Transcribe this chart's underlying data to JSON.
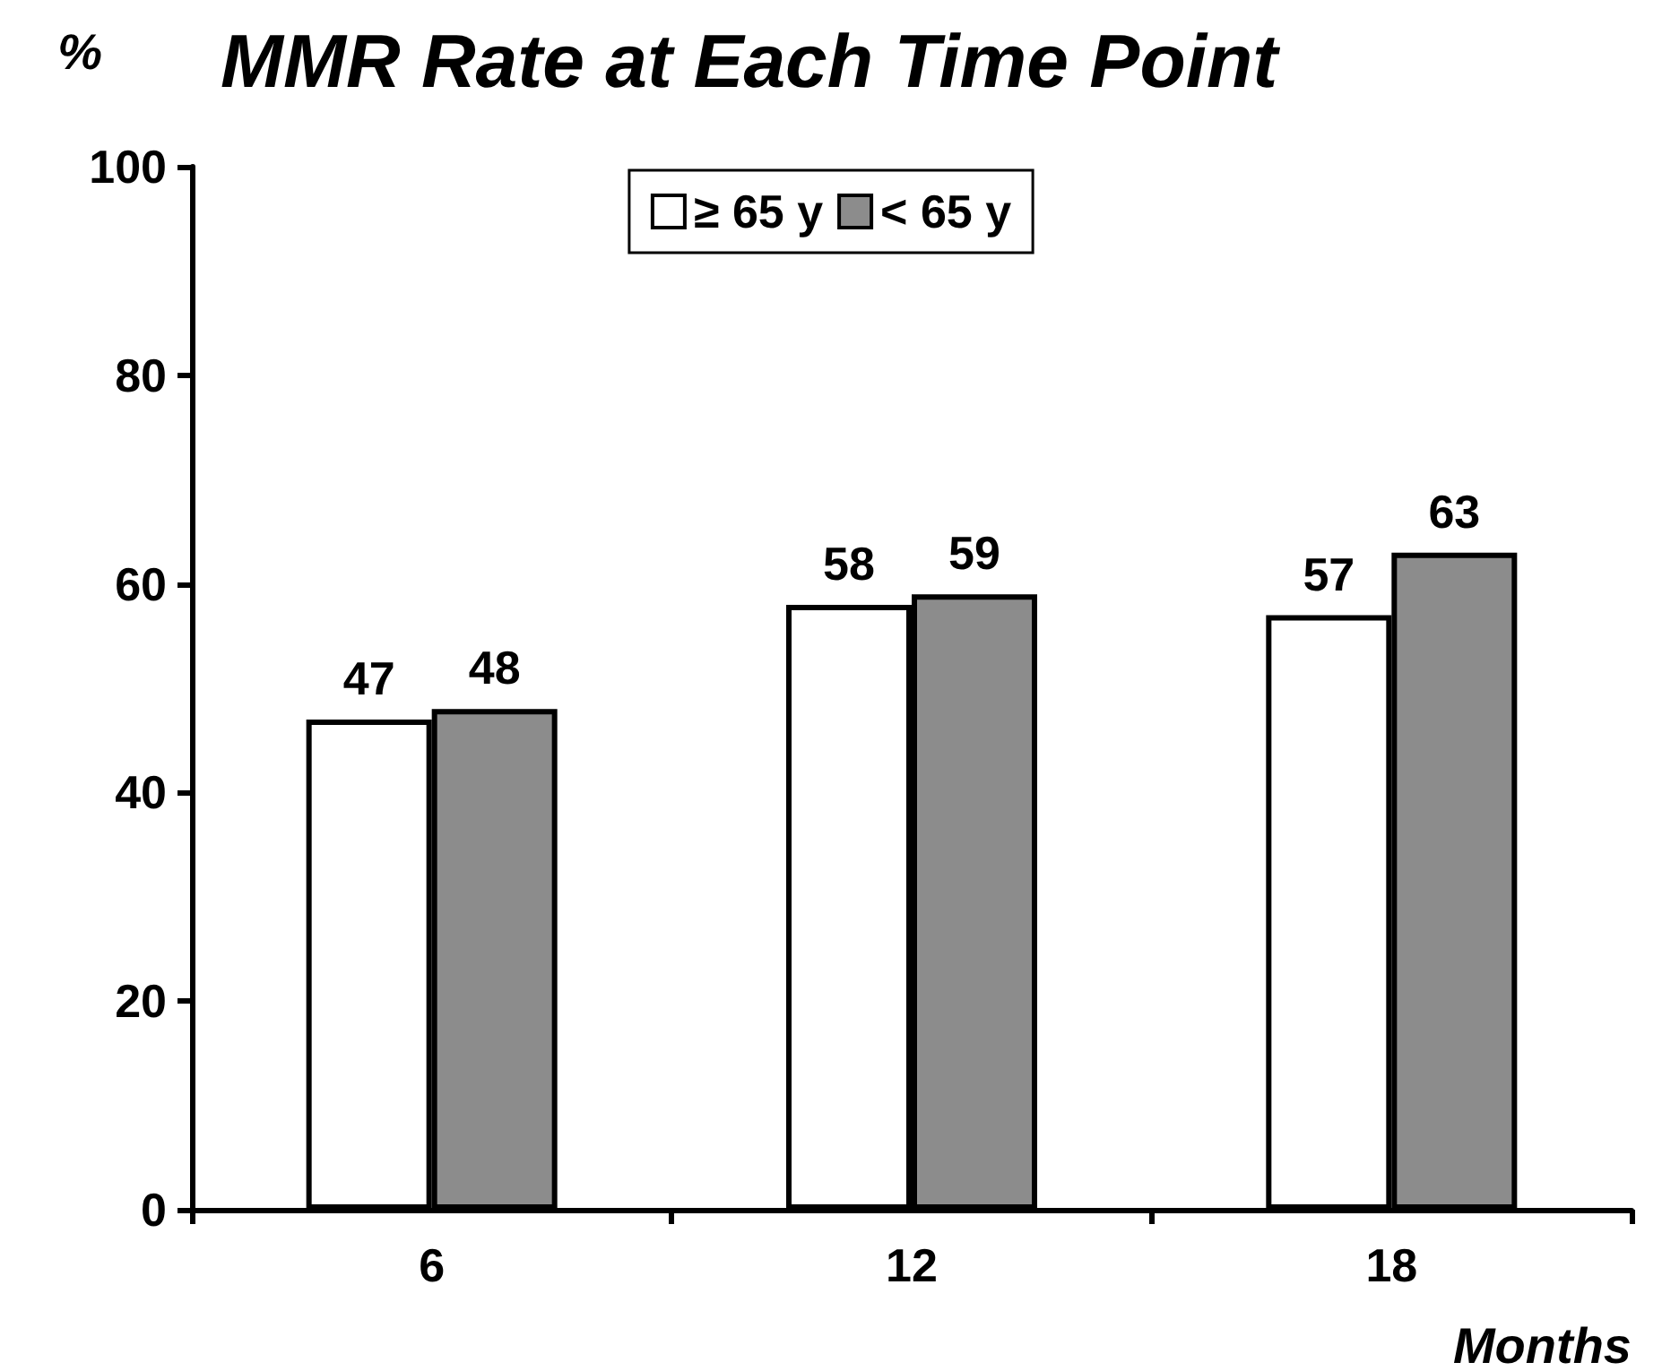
{
  "chart_data": {
    "type": "bar",
    "title": "MMR Rate at Each Time Point",
    "ylabel": "%",
    "xlabel": "Months",
    "categories": [
      "6",
      "12",
      "18"
    ],
    "series": [
      {
        "name": "≥ 65 y",
        "color": "#ffffff",
        "values": [
          47,
          58,
          57
        ]
      },
      {
        "name": "< 65 y",
        "color": "#8c8c8c",
        "values": [
          48,
          59,
          63
        ]
      }
    ],
    "ylim": [
      0,
      100
    ],
    "yticks": [
      0,
      20,
      40,
      60,
      80,
      100
    ],
    "grid": false,
    "legend": "top",
    "data_labels": true
  }
}
